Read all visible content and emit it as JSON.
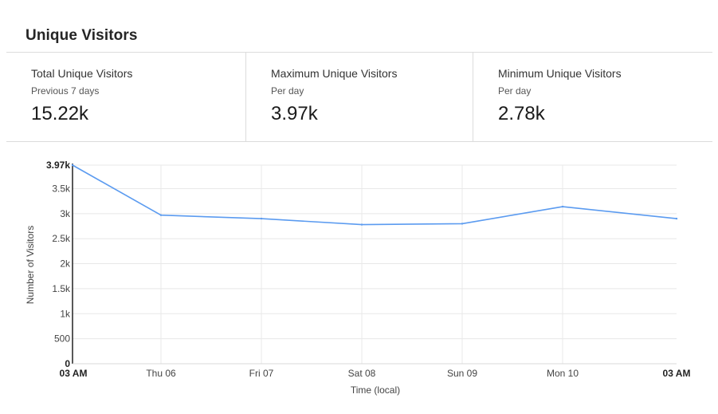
{
  "title": "Unique Visitors",
  "stats": [
    {
      "label": "Total Unique Visitors",
      "sub": "Previous 7 days",
      "value": "15.22k"
    },
    {
      "label": "Maximum Unique Visitors",
      "sub": "Per day",
      "value": "3.97k"
    },
    {
      "label": "Minimum Unique Visitors",
      "sub": "Per day",
      "value": "2.78k"
    }
  ],
  "chart_data": {
    "type": "line",
    "xlabel": "Time (local)",
    "ylabel": "Number of Visitors",
    "x_ticks": [
      "03 AM",
      "Thu 06",
      "Fri 07",
      "Sat 08",
      "Sun 09",
      "Mon 10",
      "03 AM"
    ],
    "y_ticks": [
      "0",
      "500",
      "1k",
      "1.5k",
      "2k",
      "2.5k",
      "3k",
      "3.5k",
      "3.97k"
    ],
    "ylim": [
      0,
      3970
    ],
    "grid": true,
    "line_color": "#5b9bf0",
    "series": [
      {
        "x": [
          "03 AM",
          "Thu 06",
          "Fri 07",
          "Sat 08",
          "Sun 09",
          "Mon 10",
          "03 AM"
        ],
        "values": [
          3970,
          2970,
          2900,
          2780,
          2800,
          3140,
          2900
        ]
      }
    ]
  }
}
